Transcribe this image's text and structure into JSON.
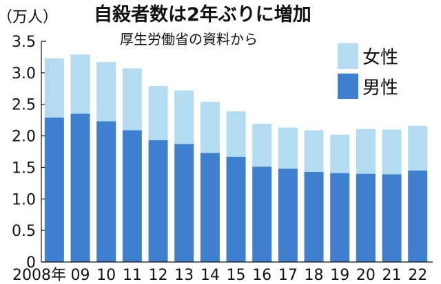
{
  "chart_data": {
    "type": "bar",
    "stacked": true,
    "title": "自殺者数は2年ぶりに増加",
    "subtitle": "厚生労働省の資料から",
    "unit_label": "（万人）",
    "categories": [
      "2008年",
      "09",
      "10",
      "11",
      "12",
      "13",
      "14",
      "15",
      "16",
      "17",
      "18",
      "19",
      "20",
      "21",
      "22"
    ],
    "series": [
      {
        "name": "男性",
        "color": "#3f7fd0",
        "values": [
          2.29,
          2.35,
          2.23,
          2.09,
          1.93,
          1.87,
          1.73,
          1.67,
          1.51,
          1.48,
          1.43,
          1.41,
          1.4,
          1.39,
          1.45
        ]
      },
      {
        "name": "女性",
        "color": "#b3dbf1",
        "values": [
          0.94,
          0.94,
          0.94,
          0.98,
          0.86,
          0.85,
          0.81,
          0.72,
          0.68,
          0.65,
          0.66,
          0.61,
          0.71,
          0.71,
          0.71
        ]
      }
    ],
    "yticks": [
      "0",
      "0.5",
      "1.0",
      "1.5",
      "2.0",
      "2.5",
      "3.0",
      "3.5"
    ],
    "ylim": [
      0,
      3.5
    ],
    "legend": {
      "placement": "top-right",
      "order": [
        "女性",
        "男性"
      ]
    },
    "grid": false
  }
}
